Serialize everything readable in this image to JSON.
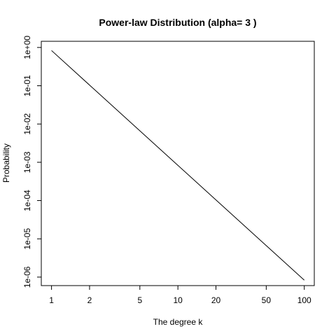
{
  "chart_data": {
    "type": "line",
    "title": "Power-law Distribution (alpha= 3 )",
    "xlabel": "The degree k",
    "ylabel": "Probability",
    "x_scale": "log",
    "y_scale": "log",
    "xlim": [
      0.83,
      120
    ],
    "ylim": [
      6e-07,
      1.45
    ],
    "grid": false,
    "legend": "none",
    "x_ticks": [
      {
        "value": 1,
        "label": "1"
      },
      {
        "value": 2,
        "label": "2"
      },
      {
        "value": 5,
        "label": "5"
      },
      {
        "value": 10,
        "label": "10"
      },
      {
        "value": 20,
        "label": "20"
      },
      {
        "value": 50,
        "label": "50"
      },
      {
        "value": 100,
        "label": "100"
      }
    ],
    "y_ticks": [
      {
        "value": 1,
        "label": "1e+00"
      },
      {
        "value": 0.1,
        "label": "1e-01"
      },
      {
        "value": 0.01,
        "label": "1e-02"
      },
      {
        "value": 0.001,
        "label": "1e-03"
      },
      {
        "value": 0.0001,
        "label": "1e-04"
      },
      {
        "value": 1e-05,
        "label": "1e-05"
      },
      {
        "value": 1e-06,
        "label": "1e-06"
      }
    ],
    "series": [
      {
        "color": "#000000",
        "x": [
          1,
          2,
          5,
          10,
          20,
          50,
          100
        ],
        "y": [
          0.832,
          0.104,
          0.00666,
          0.000832,
          0.000104,
          6.66e-06,
          8.32e-07
        ]
      }
    ]
  }
}
